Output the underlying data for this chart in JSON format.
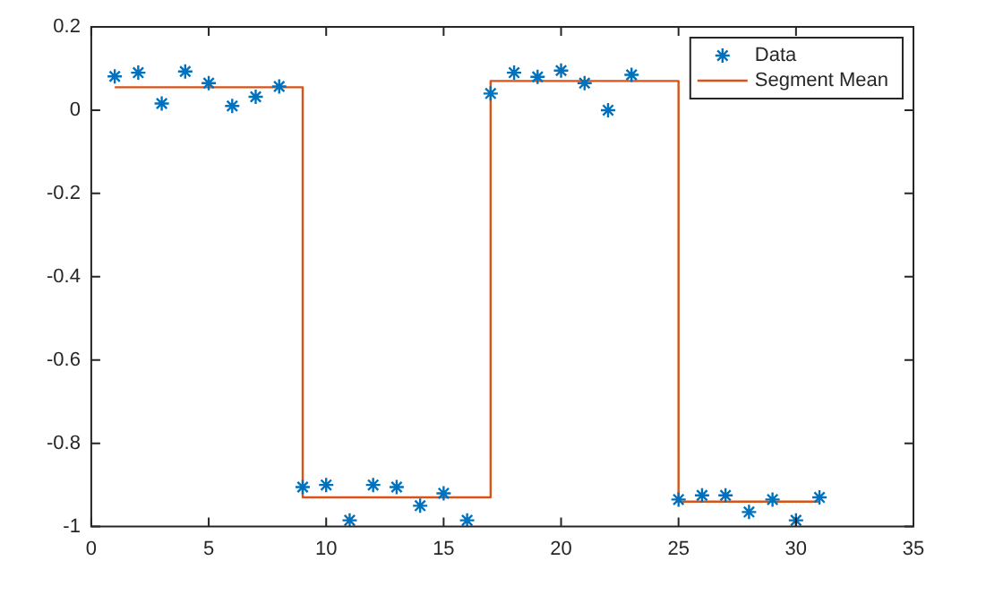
{
  "chart_data": {
    "type": "scatter",
    "x": [
      1,
      2,
      3,
      4,
      5,
      6,
      7,
      8,
      9,
      10,
      11,
      12,
      13,
      14,
      15,
      16,
      17,
      18,
      19,
      20,
      21,
      22,
      23,
      24,
      25,
      26,
      27,
      28,
      29,
      30,
      31
    ],
    "series": [
      {
        "name": "Data",
        "color": "#0072bd",
        "marker": "cross",
        "values": [
          0.081,
          0.09,
          0.016,
          0.093,
          0.065,
          0.01,
          0.032,
          0.057,
          -0.905,
          -0.9,
          -0.985,
          -0.9,
          -0.905,
          -0.95,
          -0.92,
          -0.985,
          0.04,
          0.09,
          0.08,
          0.095,
          0.065,
          0.0,
          0.085,
          null,
          -0.935,
          -0.925,
          -0.925,
          -0.965,
          -0.935,
          -0.985,
          -0.93
        ]
      },
      {
        "name": "Segment Mean",
        "type": "line",
        "color": "#d95319",
        "marker": "none",
        "x": [
          1,
          9,
          9,
          17,
          17,
          25,
          25,
          31
        ],
        "values": [
          0.055,
          0.055,
          -0.93,
          -0.93,
          0.07,
          0.07,
          -0.94,
          -0.94
        ]
      }
    ],
    "xlim": [
      0,
      35
    ],
    "xticks": [
      0,
      5,
      10,
      15,
      20,
      25,
      30,
      35
    ],
    "ylim": [
      -1,
      0.2
    ],
    "yticks": [
      -1,
      -0.8,
      -0.6,
      -0.4,
      -0.2,
      0,
      0.2
    ],
    "grid": false,
    "legend": "top right"
  }
}
